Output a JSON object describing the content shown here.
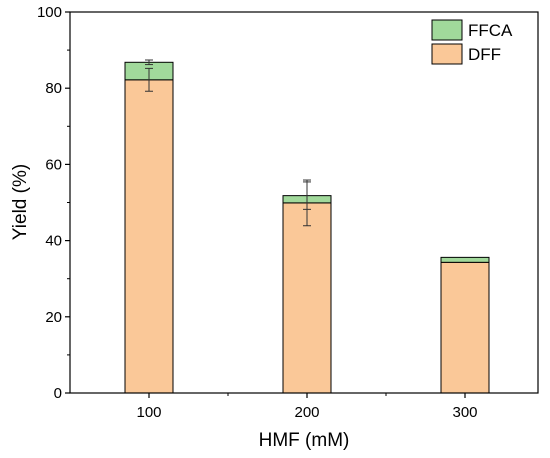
{
  "chart_data": {
    "type": "bar",
    "stacked": true,
    "categories": [
      "100",
      "200",
      "300"
    ],
    "series": [
      {
        "name": "DFF",
        "values": [
          82.2,
          49.9,
          34.3
        ],
        "errors": [
          3.0,
          6.0,
          0.0
        ],
        "color": "#fac898"
      },
      {
        "name": "FFCA",
        "values": [
          4.6,
          1.9,
          1.3
        ],
        "errors": [
          0.6,
          3.6,
          0.0
        ],
        "color": "#a1d99b"
      }
    ],
    "xlabel": "HMF (mM)",
    "ylabel": "Yield (%)",
    "ylim": [
      0,
      100
    ],
    "yticks": [
      "0",
      "20",
      "40",
      "60",
      "80",
      "100"
    ],
    "grid": false,
    "legend_position": "top-right"
  }
}
